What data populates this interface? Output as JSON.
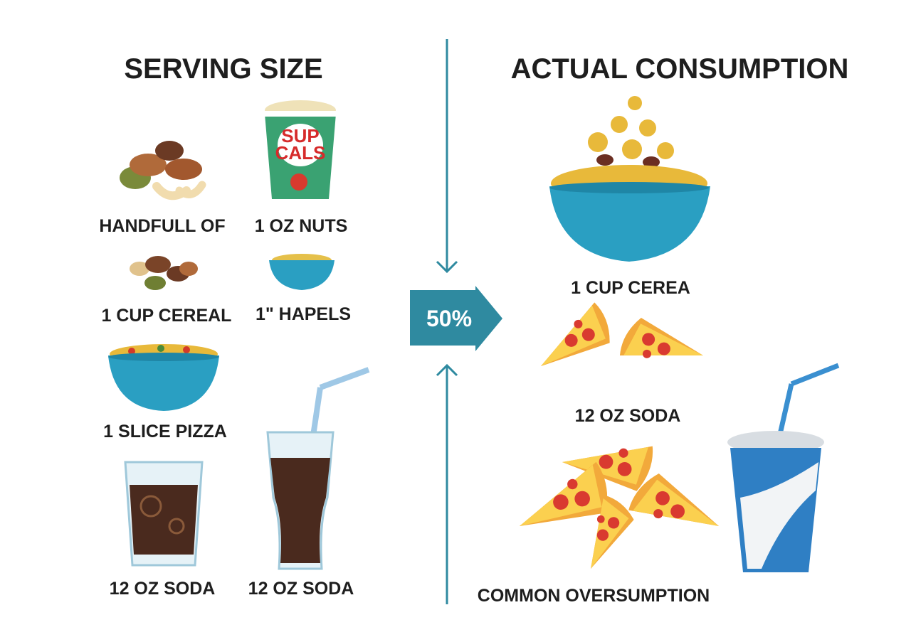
{
  "left": {
    "title": "SERVING SIZE",
    "labels": [
      "HANDFULL OF",
      "1 OZ NUTS",
      "1 CUP CEREAL",
      "1\" HAPELS",
      "1 SLICE PIZZA",
      "12 OZ SODA",
      "12 OZ SODA"
    ],
    "cup_text": [
      "SUP",
      "CALS"
    ]
  },
  "center": {
    "badge": "50%"
  },
  "right": {
    "title": "ACTUAL CONSUMPTION",
    "labels": [
      "1 CUP CEREA",
      "12 OZ SODA",
      "COMMON OVERSUMPTION"
    ]
  }
}
